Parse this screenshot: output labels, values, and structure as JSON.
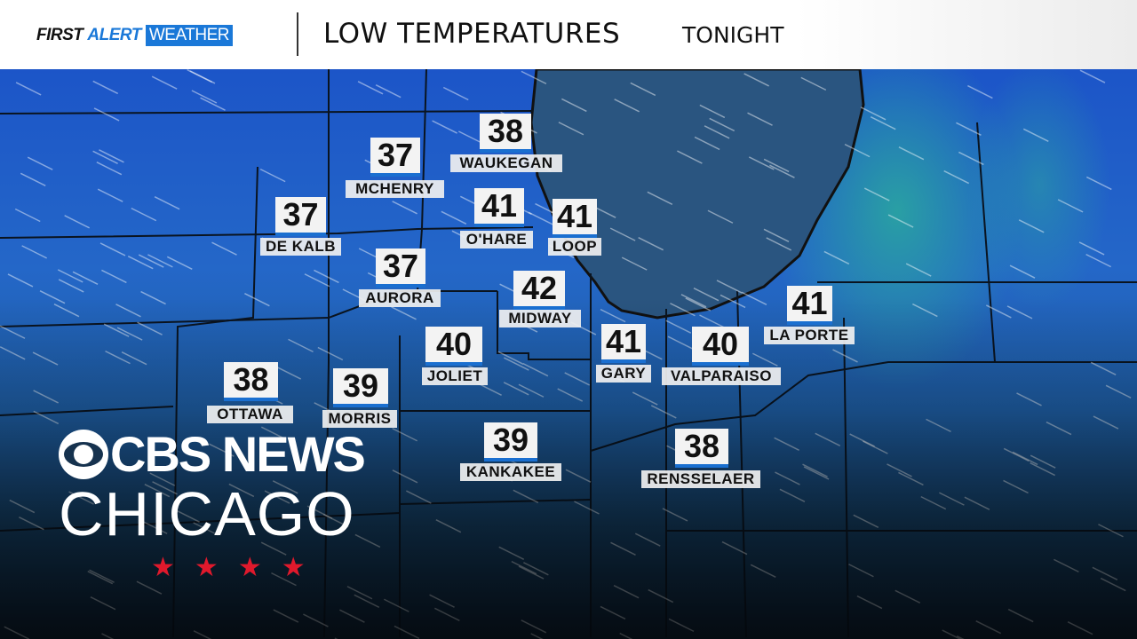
{
  "header": {
    "brand_first": "FIRST",
    "brand_alert": "ALERT",
    "brand_weather": "WEATHER",
    "title": "LOW TEMPERATURES",
    "subtitle": "TONIGHT"
  },
  "colors": {
    "accent": "#1a78d8",
    "lake": "#2a5580",
    "land_cold": "#1c55c8",
    "land_warm": "#2aa6a0",
    "stars": "#e0192c"
  },
  "stations": [
    {
      "name": "WAUKEGAN",
      "temp": "38"
    },
    {
      "name": "MCHENRY",
      "temp": "37"
    },
    {
      "name": "DE KALB",
      "temp": "37"
    },
    {
      "name": "O'HARE",
      "temp": "41"
    },
    {
      "name": "LOOP",
      "temp": "41"
    },
    {
      "name": "AURORA",
      "temp": "37"
    },
    {
      "name": "MIDWAY",
      "temp": "42"
    },
    {
      "name": "JOLIET",
      "temp": "40"
    },
    {
      "name": "GARY",
      "temp": "41"
    },
    {
      "name": "VALPARAISO",
      "temp": "40"
    },
    {
      "name": "LA PORTE",
      "temp": "41"
    },
    {
      "name": "OTTAWA",
      "temp": "38"
    },
    {
      "name": "MORRIS",
      "temp": "39"
    },
    {
      "name": "KANKAKEE",
      "temp": "39"
    },
    {
      "name": "RENSSELAER",
      "temp": "38"
    }
  ],
  "logo": {
    "line1": "CBS NEWS",
    "line2": "CHICAGO",
    "stars": [
      "★",
      "★",
      "★",
      "★"
    ],
    "icon": "cbs-eye-icon"
  }
}
